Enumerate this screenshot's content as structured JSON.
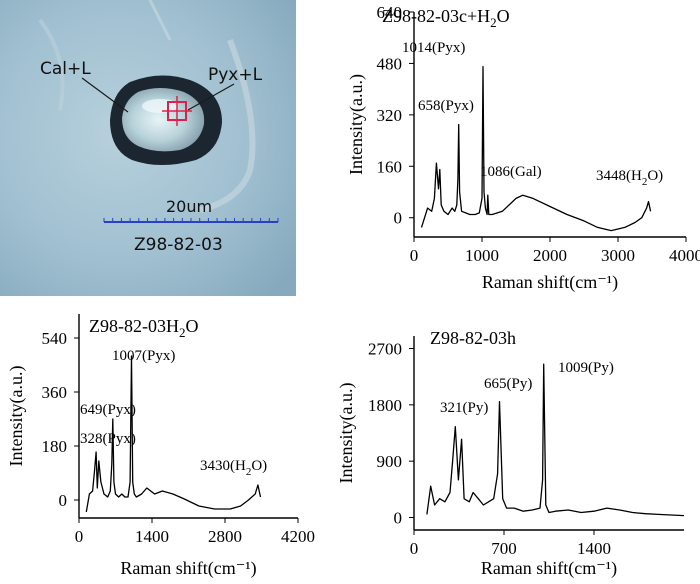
{
  "micrograph": {
    "label_left": "Cal+L",
    "label_right": "Pyx+L",
    "scale_text": "20um",
    "sample_text": "Z98-82-03",
    "colors": {
      "background": "#9fbfd0",
      "inclusion_rim": "#1c2630",
      "marker": "#e0204a",
      "scale_bar": "#2a40c8"
    }
  },
  "chart_data": [
    {
      "type": "line",
      "title": "Z98-82-03c+H2O",
      "xlabel": "Raman shift(cm⁻¹)",
      "ylabel": "Intensity(a.u.)",
      "xlim": [
        0,
        4000
      ],
      "ylim": [
        -60,
        640
      ],
      "xticks": [
        0,
        1000,
        2000,
        3000,
        4000
      ],
      "yticks": [
        0,
        160,
        320,
        480,
        640
      ],
      "grid": false,
      "annotations": [
        {
          "text": "1014(Pyx)",
          "x": 1014,
          "y": 470
        },
        {
          "text": "658(Pyx)",
          "x": 658,
          "y": 280
        },
        {
          "text": "1086(Gal)",
          "x": 1086,
          "y": 70
        },
        {
          "text": "3448(H2O)",
          "x": 3448,
          "y": 50
        }
      ],
      "series": [
        {
          "x": [
            110,
            200,
            260,
            300,
            330,
            360,
            380,
            400,
            440,
            500,
            560,
            600,
            630,
            645,
            658,
            670,
            700,
            760,
            820,
            900,
            960,
            1000,
            1014,
            1030,
            1050,
            1075,
            1086,
            1100,
            1150,
            1300,
            1500,
            1600,
            1750,
            2000,
            2250,
            2500,
            2700,
            2900,
            3100,
            3250,
            3350,
            3420,
            3448,
            3480
          ],
          "y": [
            -30,
            30,
            20,
            60,
            170,
            90,
            150,
            40,
            20,
            10,
            30,
            20,
            40,
            120,
            290,
            80,
            20,
            15,
            10,
            10,
            15,
            60,
            470,
            80,
            30,
            10,
            70,
            10,
            10,
            20,
            60,
            70,
            60,
            35,
            10,
            -10,
            -30,
            -40,
            -30,
            -15,
            0,
            30,
            50,
            20
          ]
        }
      ]
    },
    {
      "type": "line",
      "title": "Z98-82-03H2O",
      "xlabel": "Raman shift(cm⁻¹)",
      "ylabel": "Intensity(a.u.)",
      "xlim": [
        0,
        4200
      ],
      "ylim": [
        -60,
        620
      ],
      "xticks": [
        0,
        1400,
        2800,
        4200
      ],
      "yticks": [
        0,
        180,
        360,
        540
      ],
      "grid": false,
      "annotations": [
        {
          "text": "1007(Pyx)",
          "x": 1007,
          "y": 470
        },
        {
          "text": "649(Pyx)",
          "x": 649,
          "y": 280
        },
        {
          "text": "328(Pyx)",
          "x": 328,
          "y": 170
        },
        {
          "text": "3430(H2O)",
          "x": 3430,
          "y": 60
        }
      ],
      "series": [
        {
          "x": [
            140,
            200,
            260,
            300,
            328,
            350,
            380,
            420,
            480,
            550,
            600,
            630,
            649,
            670,
            700,
            760,
            820,
            880,
            940,
            980,
            1007,
            1030,
            1060,
            1100,
            1200,
            1300,
            1450,
            1600,
            1800,
            2000,
            2300,
            2600,
            2900,
            3100,
            3250,
            3380,
            3430,
            3480
          ],
          "y": [
            -40,
            20,
            30,
            100,
            160,
            40,
            130,
            60,
            20,
            10,
            30,
            120,
            270,
            60,
            20,
            10,
            20,
            10,
            10,
            60,
            480,
            60,
            20,
            10,
            20,
            40,
            20,
            30,
            20,
            5,
            -20,
            -30,
            -30,
            -20,
            0,
            20,
            50,
            10
          ]
        }
      ]
    },
    {
      "type": "line",
      "title": "Z98-82-03h",
      "xlabel": "Raman shift(cm⁻¹)",
      "ylabel": "Intensity(a.u.)",
      "xlim": [
        0,
        2100
      ],
      "ylim": [
        -200,
        2900
      ],
      "xticks": [
        0,
        700,
        1400
      ],
      "yticks": [
        0,
        900,
        1800,
        2700
      ],
      "grid": false,
      "annotations": [
        {
          "text": "1009(Py)",
          "x": 1009,
          "y": 2450
        },
        {
          "text": "665(Py)",
          "x": 665,
          "y": 1850
        },
        {
          "text": "321(Py)",
          "x": 321,
          "y": 1500
        }
      ],
      "series": [
        {
          "x": [
            100,
            130,
            160,
            200,
            240,
            280,
            300,
            321,
            345,
            370,
            390,
            430,
            460,
            500,
            540,
            580,
            620,
            650,
            665,
            690,
            720,
            780,
            850,
            920,
            980,
            1000,
            1009,
            1025,
            1050,
            1100,
            1200,
            1300,
            1400,
            1500,
            1600,
            1700,
            1800,
            1900,
            2000,
            2100
          ],
          "y": [
            50,
            500,
            200,
            300,
            250,
            400,
            900,
            1450,
            600,
            1250,
            300,
            250,
            400,
            300,
            200,
            250,
            300,
            700,
            1850,
            300,
            150,
            150,
            100,
            120,
            150,
            600,
            2450,
            200,
            80,
            100,
            120,
            80,
            100,
            150,
            120,
            80,
            60,
            50,
            40,
            30
          ]
        }
      ]
    }
  ]
}
